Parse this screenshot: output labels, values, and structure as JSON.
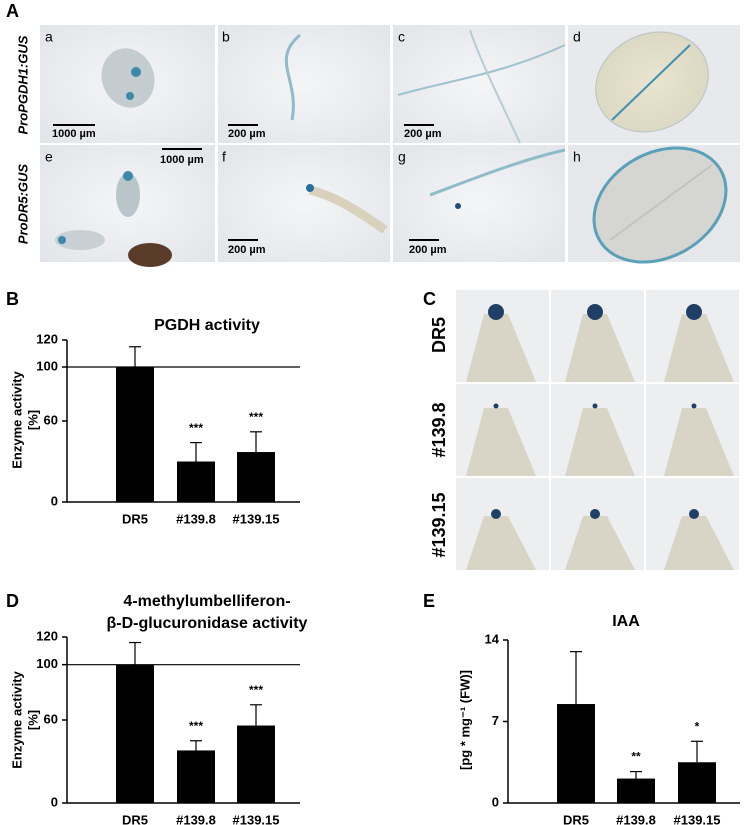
{
  "figure": {
    "panel_labels": [
      "A",
      "B",
      "C",
      "D",
      "E"
    ],
    "panel_a": {
      "row_labels": [
        "ProPGDH1:GUS",
        "ProDR5:GUS"
      ],
      "image_labels": [
        "a",
        "b",
        "c",
        "d",
        "e",
        "f",
        "g",
        "h"
      ],
      "scale_bars": [
        "1000 µm",
        "200 µm",
        "200 µm",
        "1000 µm",
        "200 µm",
        "200 µm"
      ]
    },
    "panel_c": {
      "row_labels": [
        "DR5",
        "#139.8",
        "#139.15"
      ]
    }
  },
  "chart_data": [
    {
      "type": "bar",
      "title": [
        "PGDH activity"
      ],
      "ylabel": [
        "Enzyme activity",
        "[%]"
      ],
      "categories": [
        "DR5",
        "#139.8",
        "#139.15"
      ],
      "values": [
        100,
        30,
        37
      ],
      "errors": [
        15,
        14,
        15
      ],
      "annotations": [
        null,
        "***",
        "***"
      ],
      "color": "#000000",
      "ylim": [
        0,
        120
      ],
      "yticks": [
        0,
        60,
        100,
        120
      ],
      "reference_line": 100
    },
    {
      "type": "bar",
      "title": [
        "4-methylumbelliferon-",
        "β-D-glucuronidase activity"
      ],
      "ylabel": [
        "Enzyme activity",
        "[%]"
      ],
      "categories": [
        "DR5",
        "#139.8",
        "#139.15"
      ],
      "values": [
        100,
        38,
        56
      ],
      "errors": [
        16,
        7,
        15
      ],
      "annotations": [
        null,
        "***",
        "***"
      ],
      "color": "#000000",
      "ylim": [
        0,
        120
      ],
      "yticks": [
        0,
        60,
        100,
        120
      ],
      "reference_line": 100
    },
    {
      "type": "bar",
      "title": [
        "IAA"
      ],
      "ylabel": [
        "[pg * mg⁻¹ (FW)]"
      ],
      "categories": [
        "DR5",
        "#139.8",
        "#139.15"
      ],
      "values": [
        8.5,
        2.1,
        3.5
      ],
      "errors": [
        4.5,
        0.6,
        1.8
      ],
      "annotations": [
        null,
        "**",
        "*"
      ],
      "color": "#000000",
      "ylim": [
        0,
        14
      ],
      "yticks": [
        0,
        7,
        14
      ]
    }
  ]
}
